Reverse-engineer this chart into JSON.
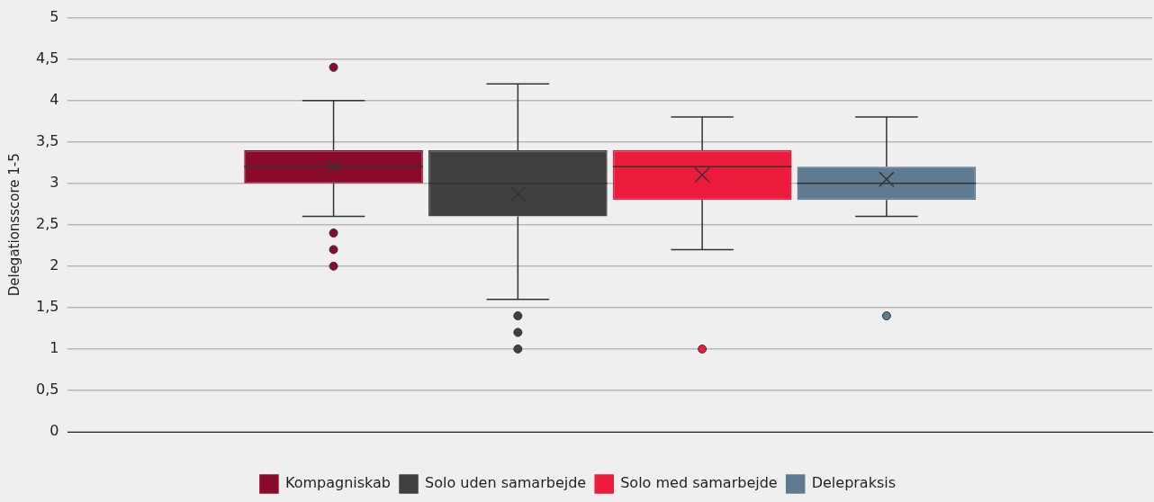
{
  "chart_data": {
    "type": "box",
    "ylabel": "Delegationsscore 1-5",
    "categories": [
      null
    ],
    "ylim": [
      0,
      5
    ],
    "yticks": [
      0,
      {
        "value": 0.5,
        "label": "0,5"
      },
      1,
      {
        "value": 1.5,
        "label": "1,5"
      },
      2,
      {
        "value": 2.5,
        "label": "2,5"
      },
      3,
      {
        "value": 3.5,
        "label": "3,5"
      },
      4,
      {
        "value": 4.5,
        "label": "4,5"
      },
      5
    ],
    "grid": "y",
    "legend": "bottom",
    "marker": "cross",
    "series": [
      {
        "name": "Kompagniskab",
        "color": "#8b0a2c",
        "boxes": [
          {
            "low": 2.6,
            "q1": 3.0,
            "median": 3.2,
            "q3": 3.4,
            "high": 4.0,
            "mean": 3.2,
            "outliers": [
              4.4,
              2.4,
              2.2,
              2.0
            ]
          }
        ]
      },
      {
        "name": "Solo uden samarbejde",
        "color": "#404040",
        "boxes": [
          {
            "low": 1.6,
            "q1": 2.6,
            "median": 3.0,
            "q3": 3.4,
            "high": 4.2,
            "mean": 2.87,
            "outliers": [
              1.4,
              1.2,
              1.0
            ]
          }
        ]
      },
      {
        "name": "Solo med samarbejde",
        "color": "#ec1a3b",
        "boxes": [
          {
            "low": 2.2,
            "q1": 2.8,
            "median": 3.2,
            "q3": 3.4,
            "high": 3.8,
            "mean": 3.1,
            "outliers": [
              1.0
            ]
          }
        ]
      },
      {
        "name": "Delepraksis",
        "color": "#5f7b91",
        "boxes": [
          {
            "low": 2.6,
            "q1": 2.8,
            "median": 3.0,
            "q3": 3.2,
            "high": 3.8,
            "mean": 3.05,
            "outliers": [
              1.4
            ]
          }
        ]
      }
    ]
  }
}
